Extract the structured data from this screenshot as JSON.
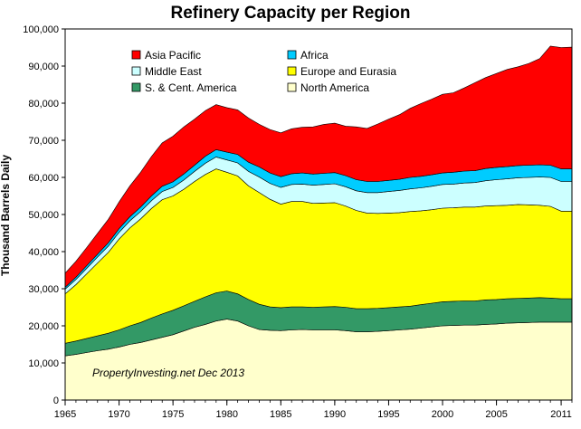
{
  "chart_data": {
    "type": "area",
    "stacked": true,
    "title": "Refinery Capacity per Region",
    "xlabel": "",
    "ylabel": "Thousand Barrels Daily",
    "xlim": [
      1965,
      2012
    ],
    "ylim": [
      0,
      100000
    ],
    "x_ticks": [
      1965,
      1970,
      1975,
      1980,
      1985,
      1990,
      1995,
      2000,
      2005,
      2011
    ],
    "y_ticks": [
      0,
      10000,
      20000,
      30000,
      40000,
      50000,
      60000,
      70000,
      80000,
      90000,
      100000
    ],
    "y_tick_labels": [
      "0",
      "10,000",
      "20,000",
      "30,000",
      "40,000",
      "50,000",
      "60,000",
      "70,000",
      "80,000",
      "90,000",
      "100,000"
    ],
    "grid": false,
    "legend_position": "top",
    "annotation": "PropertyInvesting.net  Dec 2013",
    "x": [
      1965,
      1966,
      1967,
      1968,
      1969,
      1970,
      1971,
      1972,
      1973,
      1974,
      1975,
      1976,
      1977,
      1978,
      1979,
      1980,
      1981,
      1982,
      1983,
      1984,
      1985,
      1986,
      1987,
      1988,
      1989,
      1990,
      1991,
      1992,
      1993,
      1994,
      1995,
      1996,
      1997,
      1998,
      1999,
      2000,
      2001,
      2002,
      2003,
      2004,
      2005,
      2006,
      2007,
      2008,
      2009,
      2010,
      2011,
      2012
    ],
    "series": [
      {
        "name": "North America",
        "color": "#ffffcc",
        "values": [
          11900,
          12300,
          12800,
          13300,
          13700,
          14300,
          15000,
          15500,
          16200,
          16900,
          17600,
          18600,
          19600,
          20400,
          21300,
          21800,
          21300,
          20000,
          19000,
          18800,
          18700,
          18900,
          19000,
          18900,
          18900,
          18900,
          18700,
          18400,
          18400,
          18500,
          18700,
          18900,
          19100,
          19400,
          19700,
          20000,
          20100,
          20200,
          20200,
          20400,
          20500,
          20700,
          20800,
          20900,
          21000,
          21000,
          21000,
          21000
        ]
      },
      {
        "name": "S. & Cent. America",
        "color": "#339966",
        "values": [
          3400,
          3600,
          3800,
          4000,
          4300,
          4600,
          5000,
          5400,
          5900,
          6300,
          6600,
          6800,
          7000,
          7400,
          7600,
          7600,
          7300,
          7100,
          6800,
          6300,
          6200,
          6200,
          6100,
          6100,
          6200,
          6300,
          6300,
          6200,
          6200,
          6200,
          6200,
          6200,
          6200,
          6300,
          6400,
          6500,
          6500,
          6500,
          6500,
          6600,
          6600,
          6600,
          6600,
          6600,
          6600,
          6500,
          6300,
          6300
        ]
      },
      {
        "name": "Europe and Eurasia",
        "color": "#ffff00",
        "values": [
          13300,
          15200,
          17400,
          19600,
          21800,
          24500,
          26400,
          27900,
          29500,
          30800,
          30800,
          31400,
          32300,
          33000,
          33400,
          32000,
          31800,
          30600,
          30100,
          29000,
          27900,
          28400,
          28400,
          28000,
          28000,
          28000,
          27300,
          26500,
          25800,
          25600,
          25500,
          25400,
          25500,
          25300,
          25200,
          25200,
          25200,
          25300,
          25300,
          25300,
          25300,
          25200,
          25300,
          25100,
          24900,
          24700,
          23600,
          23600
        ]
      },
      {
        "name": "Middle East",
        "color": "#ccffff",
        "values": [
          1300,
          1400,
          1500,
          1600,
          1700,
          1800,
          1900,
          2000,
          2100,
          2200,
          2300,
          2500,
          2700,
          3000,
          3200,
          3300,
          3500,
          3900,
          4200,
          4300,
          4500,
          4600,
          4700,
          4900,
          5000,
          5100,
          5200,
          5300,
          5500,
          5600,
          5800,
          6000,
          6100,
          6200,
          6300,
          6400,
          6400,
          6500,
          6600,
          6800,
          7000,
          7100,
          7200,
          7400,
          7600,
          7800,
          8000,
          8000
        ]
      },
      {
        "name": "Africa",
        "color": "#00ccff",
        "values": [
          500,
          600,
          700,
          800,
          900,
          1000,
          1100,
          1200,
          1300,
          1400,
          1500,
          1600,
          1700,
          1900,
          2000,
          2100,
          2300,
          2500,
          2700,
          2800,
          2900,
          2900,
          3000,
          3000,
          3000,
          3000,
          3000,
          3000,
          3000,
          3000,
          3000,
          3000,
          3100,
          3100,
          3100,
          3100,
          3200,
          3200,
          3200,
          3300,
          3300,
          3300,
          3300,
          3300,
          3300,
          3300,
          3400,
          3400
        ]
      },
      {
        "name": "Asia Pacific",
        "color": "#ff0000",
        "values": [
          3800,
          4300,
          4900,
          5600,
          6300,
          7200,
          8300,
          9400,
          10600,
          11700,
          12300,
          12700,
          12400,
          12300,
          12100,
          12000,
          12000,
          11900,
          11500,
          11700,
          11800,
          12100,
          12300,
          12700,
          13200,
          13300,
          13300,
          14200,
          14300,
          15500,
          16500,
          17400,
          18600,
          19600,
          20400,
          21200,
          21400,
          22400,
          23700,
          24500,
          25300,
          26200,
          26600,
          27400,
          28600,
          32100,
          32700,
          32800
        ]
      }
    ],
    "legend_layout": [
      [
        "Asia Pacific",
        "Africa"
      ],
      [
        "Middle East",
        "Europe and Eurasia"
      ],
      [
        "S. & Cent. America",
        "North America"
      ]
    ]
  }
}
